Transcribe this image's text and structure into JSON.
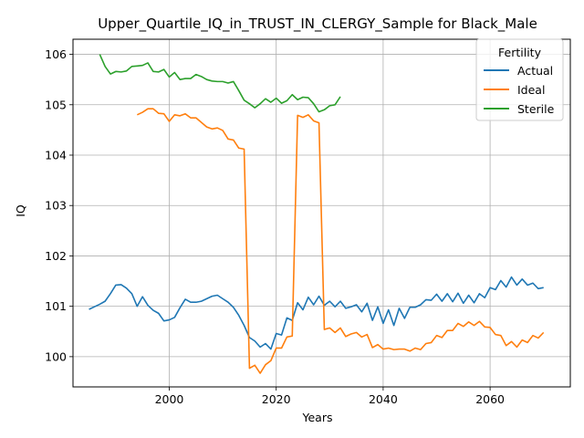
{
  "chart_data": {
    "type": "line",
    "title": "Upper_Quartile_IQ_in_TRUST_IN_CLERGY_Sample for Black_Male",
    "xlabel": "Years",
    "ylabel": "IQ",
    "xlim": [
      1982,
      2075
    ],
    "ylim": [
      99.4,
      106.3
    ],
    "xticks": [
      2000,
      2020,
      2040,
      2060
    ],
    "yticks": [
      100,
      101,
      102,
      103,
      104,
      105,
      106
    ],
    "grid": true,
    "legend": {
      "title": "Fertility",
      "position": "top-right"
    },
    "series": [
      {
        "name": "Actual",
        "color": "#1f77b4",
        "x": [
          1985,
          1986,
          1987,
          1988,
          1989,
          1990,
          1991,
          1992,
          1993,
          1994,
          1995,
          1996,
          1997,
          1998,
          1999,
          2000,
          2001,
          2002,
          2003,
          2004,
          2005,
          2006,
          2007,
          2008,
          2009,
          2010,
          2011,
          2012,
          2013,
          2014,
          2015,
          2016,
          2017,
          2018,
          2019,
          2020,
          2021,
          2022,
          2023,
          2024,
          2025,
          2026,
          2027,
          2028,
          2029,
          2030,
          2031,
          2032,
          2033,
          2034,
          2035,
          2036,
          2037,
          2038,
          2039,
          2040,
          2041,
          2042,
          2043,
          2044,
          2045,
          2046,
          2047,
          2048,
          2049,
          2050,
          2051,
          2052,
          2053,
          2054,
          2055,
          2056,
          2057,
          2058,
          2059,
          2060,
          2061,
          2062,
          2063,
          2064,
          2065,
          2066,
          2067,
          2068,
          2069,
          2070
        ],
        "values": [
          100.94,
          100.99,
          101.04,
          101.1,
          101.25,
          101.42,
          101.43,
          101.36,
          101.25,
          101.0,
          101.19,
          101.02,
          100.92,
          100.86,
          100.71,
          100.73,
          100.78,
          100.97,
          101.14,
          101.08,
          101.08,
          101.1,
          101.15,
          101.2,
          101.22,
          101.15,
          101.08,
          100.98,
          100.82,
          100.62,
          100.38,
          100.31,
          100.19,
          100.26,
          100.15,
          100.46,
          100.43,
          100.77,
          100.72,
          101.07,
          100.93,
          101.18,
          101.03,
          101.2,
          101.02,
          101.1,
          100.99,
          101.1,
          100.96,
          100.99,
          101.03,
          100.89,
          101.06,
          100.72,
          100.99,
          100.66,
          100.93,
          100.62,
          100.96,
          100.76,
          100.98,
          100.98,
          101.03,
          101.13,
          101.12,
          101.24,
          101.1,
          101.25,
          101.09,
          101.26,
          101.06,
          101.22,
          101.07,
          101.25,
          101.17,
          101.37,
          101.33,
          101.51,
          101.38,
          101.58,
          101.42,
          101.54,
          101.42,
          101.46,
          101.35,
          101.37
        ]
      },
      {
        "name": "Ideal",
        "color": "#ff7f0e",
        "x": [
          1994,
          1995,
          1996,
          1997,
          1998,
          1999,
          2000,
          2001,
          2002,
          2003,
          2004,
          2005,
          2006,
          2007,
          2008,
          2009,
          2010,
          2011,
          2012,
          2013,
          2014,
          2015,
          2016,
          2017,
          2018,
          2019,
          2020,
          2021,
          2022,
          2023,
          2024,
          2025,
          2026,
          2027,
          2028,
          2029,
          2030,
          2031,
          2032,
          2033,
          2034,
          2035,
          2036,
          2037,
          2038,
          2039,
          2040,
          2041,
          2042,
          2043,
          2044,
          2045,
          2046,
          2047,
          2048,
          2049,
          2050,
          2051,
          2052,
          2053,
          2054,
          2055,
          2056,
          2057,
          2058,
          2059,
          2060,
          2061,
          2062,
          2063,
          2064,
          2065,
          2066,
          2067,
          2068,
          2069,
          2070
        ],
        "values": [
          104.8,
          104.85,
          104.92,
          104.92,
          104.83,
          104.82,
          104.67,
          104.8,
          104.78,
          104.82,
          104.74,
          104.74,
          104.65,
          104.56,
          104.52,
          104.54,
          104.49,
          104.32,
          104.3,
          104.14,
          104.12,
          99.77,
          99.83,
          99.67,
          99.84,
          99.92,
          100.17,
          100.17,
          100.39,
          100.41,
          104.79,
          104.75,
          104.8,
          104.68,
          104.64,
          100.54,
          100.57,
          100.48,
          100.57,
          100.4,
          100.45,
          100.48,
          100.39,
          100.44,
          100.18,
          100.24,
          100.15,
          100.17,
          100.14,
          100.15,
          100.15,
          100.11,
          100.17,
          100.14,
          100.26,
          100.28,
          100.42,
          100.38,
          100.52,
          100.52,
          100.66,
          100.6,
          100.69,
          100.62,
          100.7,
          100.59,
          100.58,
          100.44,
          100.42,
          100.22,
          100.3,
          100.19,
          100.33,
          100.28,
          100.42,
          100.37,
          100.48
        ]
      },
      {
        "name": "Sterile",
        "color": "#2ca02c",
        "x": [
          1987,
          1988,
          1989,
          1990,
          1991,
          1992,
          1993,
          1994,
          1995,
          1996,
          1997,
          1998,
          1999,
          2000,
          2001,
          2002,
          2003,
          2004,
          2005,
          2006,
          2007,
          2008,
          2009,
          2010,
          2011,
          2012,
          2013,
          2014,
          2015,
          2016,
          2017,
          2018,
          2019,
          2020,
          2021,
          2022,
          2023,
          2024,
          2025,
          2026,
          2027,
          2028,
          2029,
          2030,
          2031,
          2032
        ],
        "values": [
          106.0,
          105.76,
          105.61,
          105.66,
          105.65,
          105.67,
          105.76,
          105.77,
          105.78,
          105.83,
          105.66,
          105.65,
          105.7,
          105.55,
          105.64,
          105.5,
          105.52,
          105.52,
          105.6,
          105.56,
          105.5,
          105.47,
          105.46,
          105.46,
          105.43,
          105.46,
          105.28,
          105.09,
          105.02,
          104.94,
          105.02,
          105.12,
          105.05,
          105.13,
          105.03,
          105.08,
          105.2,
          105.1,
          105.15,
          105.14,
          105.02,
          104.86,
          104.9,
          104.98,
          105.0,
          105.16
        ]
      }
    ]
  }
}
